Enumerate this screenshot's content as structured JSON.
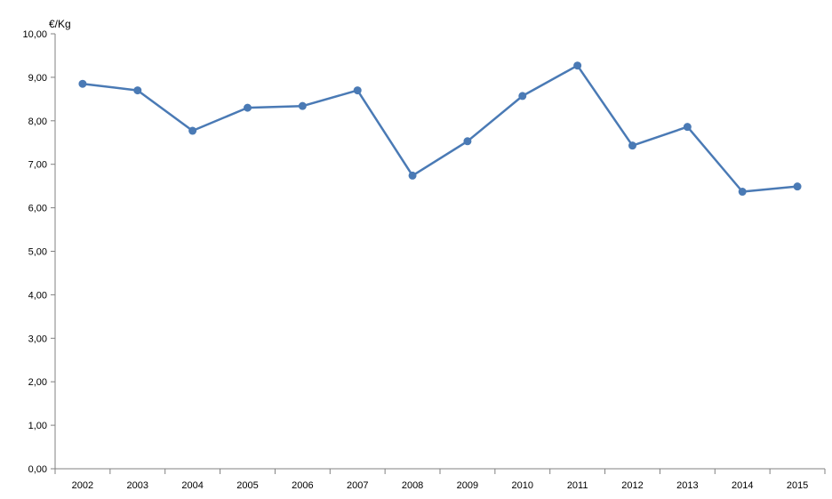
{
  "chart_data": {
    "type": "line",
    "title": "",
    "xlabel": "",
    "ylabel": "€/Kg",
    "ylim": [
      0,
      10
    ],
    "yticks": [
      "0,00",
      "1,00",
      "2,00",
      "3,00",
      "4,00",
      "5,00",
      "6,00",
      "7,00",
      "8,00",
      "9,00",
      "10,00"
    ],
    "categories": [
      "2002",
      "2003",
      "2004",
      "2005",
      "2006",
      "2007",
      "2008",
      "2009",
      "2010",
      "2011",
      "2012",
      "2013",
      "2014",
      "2015"
    ],
    "series": [
      {
        "values": [
          8.85,
          8.7,
          7.77,
          8.3,
          8.34,
          8.7,
          6.74,
          7.53,
          8.57,
          9.27,
          7.43,
          7.86,
          6.37,
          6.49
        ]
      }
    ],
    "grid": false,
    "legend": "none",
    "colors": {
      "line": "#4a7ab5",
      "axis": "#808080"
    }
  }
}
